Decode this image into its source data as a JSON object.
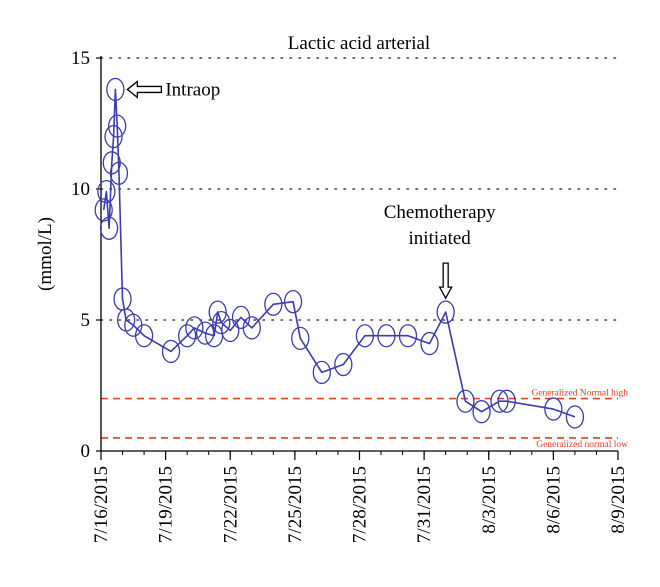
{
  "chart_data": {
    "type": "line",
    "title": "Lactic acid arterial",
    "ylabel": "(mmol/L)",
    "xlabel": "",
    "ylim": [
      0,
      15
    ],
    "yticks": [
      0,
      5,
      10,
      15
    ],
    "xlim": [
      "7/16/2015",
      "8/9/2015"
    ],
    "xticks": [
      "7/16/2015",
      "7/19/2015",
      "7/22/2015",
      "7/25/2015",
      "7/28/2015",
      "7/31/2015",
      "8/3/2015",
      "8/6/2015",
      "8/9/2015"
    ],
    "grid": "horizontal-dotted",
    "series": [
      {
        "color": "#3b3bb3",
        "marker": "open-circle",
        "points": [
          {
            "x": "7/16/2015 03:00",
            "y": 9.2
          },
          {
            "x": "7/16/2015 06:00",
            "y": 9.9
          },
          {
            "x": "7/16/2015 09:00",
            "y": 8.5
          },
          {
            "x": "7/16/2015 12:00",
            "y": 11.0
          },
          {
            "x": "7/16/2015 14:00",
            "y": 12.0
          },
          {
            "x": "7/16/2015 16:00",
            "y": 13.8
          },
          {
            "x": "7/16/2015 18:00",
            "y": 12.4
          },
          {
            "x": "7/16/2015 20:00",
            "y": 10.6
          },
          {
            "x": "7/17/2015 00:00",
            "y": 5.8
          },
          {
            "x": "7/17/2015 04:00",
            "y": 5.0
          },
          {
            "x": "7/17/2015 12:00",
            "y": 4.8
          },
          {
            "x": "7/18/2015 00:00",
            "y": 4.4
          },
          {
            "x": "7/19/2015 06:00",
            "y": 3.8
          },
          {
            "x": "7/20/2015 00:00",
            "y": 4.4
          },
          {
            "x": "7/20/2015 08:00",
            "y": 4.7
          },
          {
            "x": "7/20/2015 20:00",
            "y": 4.5
          },
          {
            "x": "7/21/2015 06:00",
            "y": 4.4
          },
          {
            "x": "7/21/2015 10:00",
            "y": 5.3
          },
          {
            "x": "7/21/2015 14:00",
            "y": 4.9
          },
          {
            "x": "7/22/2015 00:00",
            "y": 4.6
          },
          {
            "x": "7/22/2015 12:00",
            "y": 5.1
          },
          {
            "x": "7/23/2015 00:00",
            "y": 4.7
          },
          {
            "x": "7/24/2015 00:00",
            "y": 5.6
          },
          {
            "x": "7/24/2015 22:00",
            "y": 5.7
          },
          {
            "x": "7/25/2015 06:00",
            "y": 4.3
          },
          {
            "x": "7/26/2015 06:00",
            "y": 3.0
          },
          {
            "x": "7/27/2015 06:00",
            "y": 3.3
          },
          {
            "x": "7/28/2015 06:00",
            "y": 4.4
          },
          {
            "x": "7/29/2015 06:00",
            "y": 4.4
          },
          {
            "x": "7/30/2015 06:00",
            "y": 4.4
          },
          {
            "x": "7/31/2015 06:00",
            "y": 4.1
          },
          {
            "x": "8/1/2015 00:00",
            "y": 5.3
          },
          {
            "x": "8/1/2015 22:00",
            "y": 1.9
          },
          {
            "x": "8/2/2015 16:00",
            "y": 1.5
          },
          {
            "x": "8/3/2015 12:00",
            "y": 1.9
          },
          {
            "x": "8/3/2015 20:00",
            "y": 1.9
          },
          {
            "x": "8/6/2015 00:00",
            "y": 1.6
          },
          {
            "x": "8/7/2015 00:00",
            "y": 1.3
          }
        ]
      }
    ],
    "reference_lines": [
      {
        "label": "Generalized Normal high",
        "y": 2.0,
        "color": "#e8401c"
      },
      {
        "label": "Generalized normal low",
        "y": 0.5,
        "color": "#e8401c"
      }
    ],
    "annotations": [
      {
        "text": "Intraop",
        "x": "7/16/2015 16:00",
        "y": 13.8
      },
      {
        "lines": [
          "Chemotherapy",
          "initiated"
        ],
        "x": "8/1/2015 00:00",
        "y": 5.3
      }
    ]
  }
}
